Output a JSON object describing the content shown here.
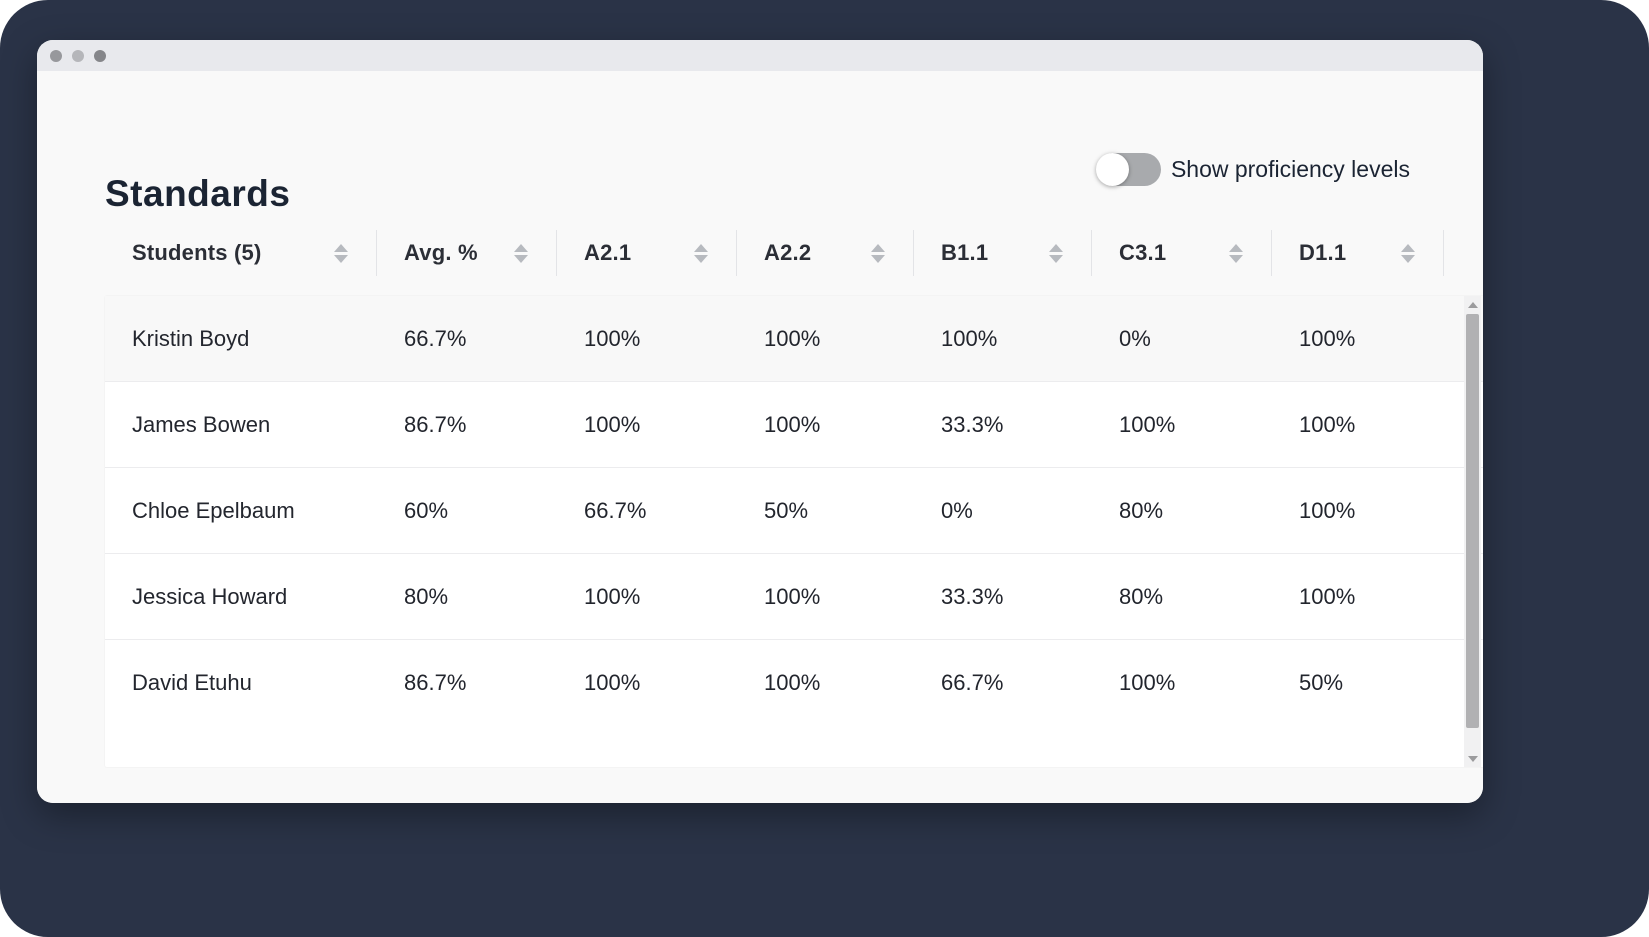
{
  "window": {
    "traffic_dots": [
      {
        "name": "dot-1",
        "color": "#97989c"
      },
      {
        "name": "dot-2",
        "color": "#b5b6ba"
      },
      {
        "name": "dot-3",
        "color": "#85868a"
      }
    ]
  },
  "header": {
    "title": "Standards",
    "toggle_label": "Show proficiency levels",
    "toggle_state": "off"
  },
  "table": {
    "columns": [
      "Students (5)",
      "Avg. %",
      "A2.1",
      "A2.2",
      "B1.1",
      "C3.1",
      "D1.1"
    ],
    "rows": [
      {
        "student": "Kristin Boyd",
        "values": [
          "66.7%",
          "100%",
          "100%",
          "100%",
          "0%",
          "100%"
        ]
      },
      {
        "student": "James Bowen",
        "values": [
          "86.7%",
          "100%",
          "100%",
          "33.3%",
          "100%",
          "100%"
        ]
      },
      {
        "student": "Chloe Epelbaum",
        "values": [
          "60%",
          "66.7%",
          "50%",
          "0%",
          "80%",
          "100%"
        ]
      },
      {
        "student": "Jessica Howard",
        "values": [
          "80%",
          "100%",
          "100%",
          "33.3%",
          "80%",
          "100%"
        ]
      },
      {
        "student": "David Etuhu",
        "values": [
          "86.7%",
          "100%",
          "100%",
          "66.7%",
          "100%",
          "50%"
        ]
      }
    ]
  },
  "colors": {
    "frame_background": "#2a3347",
    "titlebar": "#e8e9ed",
    "page_background": "#f9f9f9",
    "card_background": "#ffffff",
    "text_primary": "#1b2433",
    "toggle_track_off": "#a8aaad",
    "scrollbar_thumb": "#b1b1b3"
  }
}
